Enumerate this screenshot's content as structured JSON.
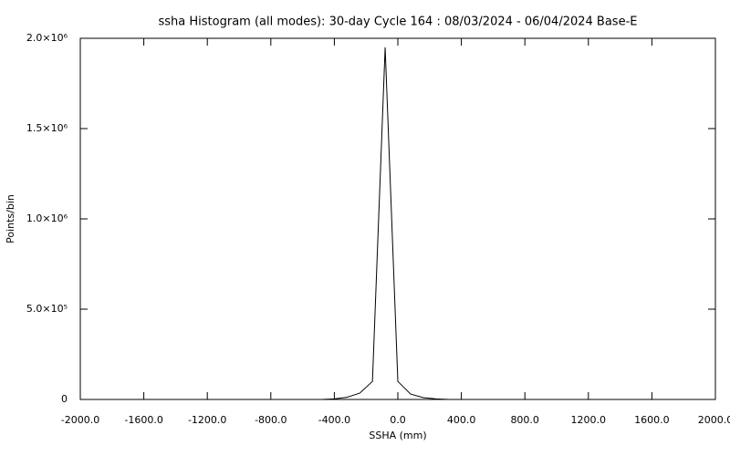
{
  "chart_data": {
    "type": "line",
    "title": "ssha Histogram (all modes): 30-day Cycle 164 : 08/03/2024 - 06/04/2024 Base-E",
    "x_label": "SSHA (mm)",
    "y_label": "Points/bin",
    "x": [
      -480,
      -400,
      -320,
      -240,
      -160,
      -80,
      0,
      80,
      160,
      240,
      320
    ],
    "series": [
      {
        "color": "#000000",
        "values": [
          0,
          3000,
          12000,
          35000,
          100000,
          1950000,
          100000,
          30000,
          10000,
          3000,
          0
        ]
      }
    ],
    "xlim": [
      -2000,
      2000
    ],
    "xticks": [
      {
        "value": -2000,
        "label": "-2000.0"
      },
      {
        "value": -1600,
        "label": "-1600.0"
      },
      {
        "value": -1200,
        "label": "-1200.0"
      },
      {
        "value": -800,
        "label": "-800.0"
      },
      {
        "value": -400,
        "label": "-400.0"
      },
      {
        "value": 0,
        "label": "0.0"
      },
      {
        "value": 400,
        "label": "400.0"
      },
      {
        "value": 800,
        "label": "800.0"
      },
      {
        "value": 1200,
        "label": "1200.0"
      },
      {
        "value": 1600,
        "label": "1600.0"
      },
      {
        "value": 2000,
        "label": "2000.0"
      }
    ],
    "ylim": [
      0,
      2000000
    ],
    "yticks": [
      0,
      {
        "value": 500000,
        "label": "5.0×10⁵"
      },
      {
        "value": 1000000,
        "label": "1.0×10⁶"
      },
      {
        "value": 1500000,
        "label": "1.5×10⁶"
      },
      {
        "value": 2000000,
        "label": "2.0×10⁶"
      }
    ],
    "grid": false
  }
}
